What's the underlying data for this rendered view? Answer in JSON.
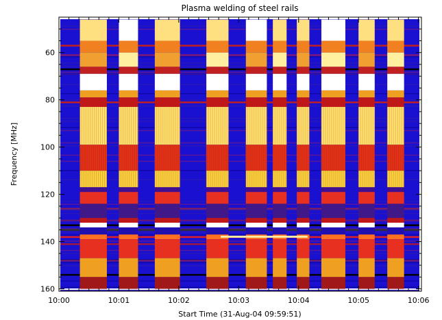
{
  "chart_data": {
    "type": "heatmap",
    "title": "Plasma welding of steel rails",
    "xlabel": "Start Time (31-Aug-04 09:59:51)",
    "ylabel": "Frequency [MHz]",
    "x_ticks": [
      "10:00",
      "10:01",
      "10:02",
      "10:03",
      "10:04",
      "10:05",
      "10:06"
    ],
    "x_tick_minutes": [
      0,
      1,
      2,
      3,
      4,
      5,
      6
    ],
    "y_ticks": [
      60,
      80,
      100,
      120,
      140,
      160
    ],
    "xlim_minutes": [
      0,
      6.05
    ],
    "ylim": [
      45,
      161
    ],
    "y_inverted": true,
    "grid": false,
    "colormap": [
      "#000000",
      "#1a10d0",
      "#c01818",
      "#f01818",
      "#f0a020",
      "#ffe060",
      "#fff8c0",
      "#ffffff"
    ],
    "welding_bursts_minutes": [
      [
        0.35,
        0.8
      ],
      [
        1.0,
        1.32
      ],
      [
        1.6,
        2.02
      ],
      [
        2.46,
        2.83
      ],
      [
        3.12,
        3.47
      ],
      [
        3.57,
        3.8
      ],
      [
        3.97,
        4.18
      ],
      [
        4.38,
        4.78
      ],
      [
        5.0,
        5.27
      ],
      [
        5.48,
        5.76
      ]
    ],
    "persistent_bands_mhz": [
      57,
      61,
      67,
      69,
      81,
      126,
      131,
      133,
      135,
      138,
      141,
      148,
      154
    ]
  }
}
